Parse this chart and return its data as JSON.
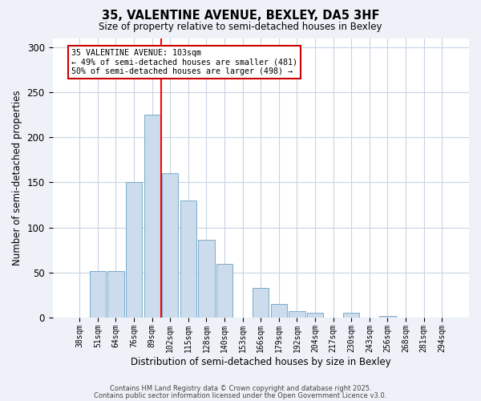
{
  "title": "35, VALENTINE AVENUE, BEXLEY, DA5 3HF",
  "subtitle": "Size of property relative to semi-detached houses in Bexley",
  "xlabel": "Distribution of semi-detached houses by size in Bexley",
  "ylabel": "Number of semi-detached properties",
  "bar_labels": [
    "38sqm",
    "51sqm",
    "64sqm",
    "76sqm",
    "89sqm",
    "102sqm",
    "115sqm",
    "128sqm",
    "140sqm",
    "153sqm",
    "166sqm",
    "179sqm",
    "192sqm",
    "204sqm",
    "217sqm",
    "230sqm",
    "243sqm",
    "256sqm",
    "268sqm",
    "281sqm",
    "294sqm"
  ],
  "bar_heights": [
    0,
    52,
    52,
    150,
    225,
    160,
    130,
    86,
    60,
    0,
    33,
    15,
    7,
    5,
    0,
    5,
    0,
    2,
    0,
    0,
    0
  ],
  "bar_color": "#ccdcec",
  "bar_edge_color": "#7aaaca",
  "redline_index": 5,
  "annotation_title": "35 VALENTINE AVENUE: 103sqm",
  "annotation_line1": "← 49% of semi-detached houses are smaller (481)",
  "annotation_line2": "50% of semi-detached houses are larger (498) →",
  "annotation_box_color": "#ffffff",
  "annotation_box_edgecolor": "#cc0000",
  "ylim": [
    0,
    310
  ],
  "yticks": [
    0,
    50,
    100,
    150,
    200,
    250,
    300
  ],
  "footnote1": "Contains HM Land Registry data © Crown copyright and database right 2025.",
  "footnote2": "Contains public sector information licensed under the Open Government Licence v3.0.",
  "background_color": "#eef2f8",
  "plot_bg_color": "#ffffff",
  "grid_color": "#c8d4e4"
}
